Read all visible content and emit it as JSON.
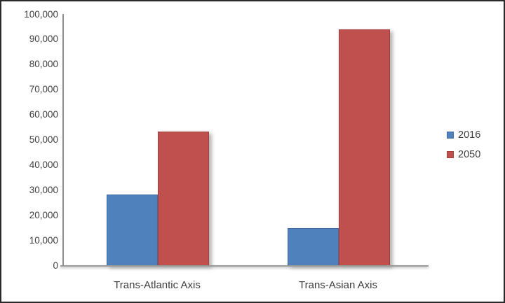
{
  "chart_data": {
    "type": "bar",
    "title": "",
    "xlabel": "",
    "ylabel": "",
    "categories": [
      "Trans-Atlantic Axis",
      "Trans-Asian Axis"
    ],
    "series": [
      {
        "name": "2016",
        "color": "#4f81bd",
        "border_color": "#3f6ca3",
        "values": [
          28500,
          15000
        ]
      },
      {
        "name": "2050",
        "color": "#c0504d",
        "border_color": "#a33f3d",
        "values": [
          53500,
          94000
        ]
      }
    ],
    "ylim": [
      0,
      100000
    ],
    "ytick_step": 10000,
    "ytick_labels": [
      "0",
      "10,000",
      "20,000",
      "30,000",
      "40,000",
      "50,000",
      "60,000",
      "70,000",
      "80,000",
      "90,000",
      "100,000"
    ],
    "grid": false,
    "legend_position": "right"
  },
  "style": {
    "background": "#ffffff",
    "frame_border": "#2a2a2a",
    "axis_color": "#8f8f8f",
    "text_color": "#3d3d3d"
  }
}
